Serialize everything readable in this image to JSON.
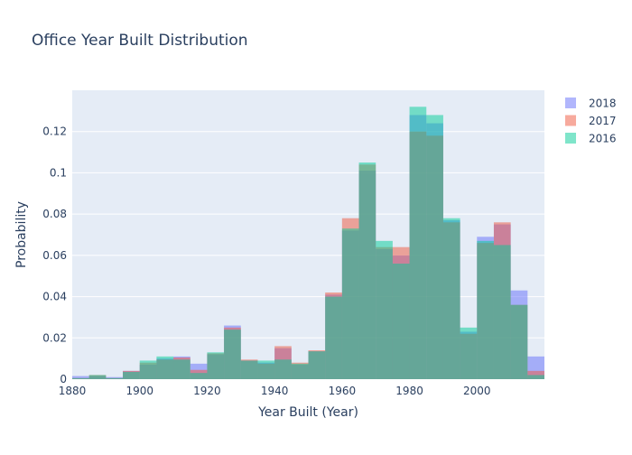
{
  "chart_data": {
    "type": "bar",
    "title": "Office Year Built Distribution",
    "xlabel": "Year Built (Year)",
    "ylabel": "Probability",
    "xlim": [
      1880,
      2020
    ],
    "ylim": [
      0,
      0.14
    ],
    "x_ticks": [
      "1880",
      "1900",
      "1920",
      "1940",
      "1960",
      "1980",
      "2000"
    ],
    "x_tick_values": [
      1880,
      1900,
      1920,
      1940,
      1960,
      1980,
      2000
    ],
    "y_ticks": [
      "0",
      "0.02",
      "0.04",
      "0.06",
      "0.08",
      "0.1",
      "0.12"
    ],
    "y_tick_values": [
      0,
      0.02,
      0.04,
      0.06,
      0.08,
      0.1,
      0.12
    ],
    "grid": true,
    "legend_position": "top-right",
    "bin_starts": [
      1880,
      1885,
      1890,
      1895,
      1900,
      1905,
      1910,
      1915,
      1920,
      1925,
      1930,
      1935,
      1940,
      1945,
      1950,
      1955,
      1960,
      1965,
      1970,
      1975,
      1980,
      1985,
      1990,
      1995,
      2000,
      2005,
      2010,
      2015
    ],
    "bin_width": 5,
    "series": [
      {
        "name": "2018",
        "color": "#636efa",
        "values": [
          0.0015,
          0.0015,
          0.001,
          0.004,
          0.007,
          0.01,
          0.011,
          0.0075,
          0.012,
          0.026,
          0.009,
          0.008,
          0.015,
          0.007,
          0.0135,
          0.041,
          0.072,
          0.101,
          0.063,
          0.06,
          0.128,
          0.124,
          0.077,
          0.023,
          0.069,
          0.075,
          0.043,
          0.011
        ]
      },
      {
        "name": "2017",
        "color": "#ef553b",
        "values": [
          0.0005,
          0.002,
          0.0005,
          0.004,
          0.008,
          0.0095,
          0.0105,
          0.0045,
          0.0125,
          0.025,
          0.0095,
          0.0075,
          0.016,
          0.008,
          0.014,
          0.042,
          0.078,
          0.104,
          0.064,
          0.064,
          0.12,
          0.118,
          0.076,
          0.022,
          0.066,
          0.076,
          0.036,
          0.004
        ]
      },
      {
        "name": "2016",
        "color": "#00cc96",
        "values": [
          0.0005,
          0.002,
          0.0005,
          0.0035,
          0.009,
          0.011,
          0.0095,
          0.003,
          0.013,
          0.024,
          0.009,
          0.009,
          0.0095,
          0.0075,
          0.0135,
          0.04,
          0.073,
          0.105,
          0.067,
          0.056,
          0.132,
          0.128,
          0.078,
          0.025,
          0.067,
          0.065,
          0.036,
          0.002
        ]
      }
    ]
  }
}
